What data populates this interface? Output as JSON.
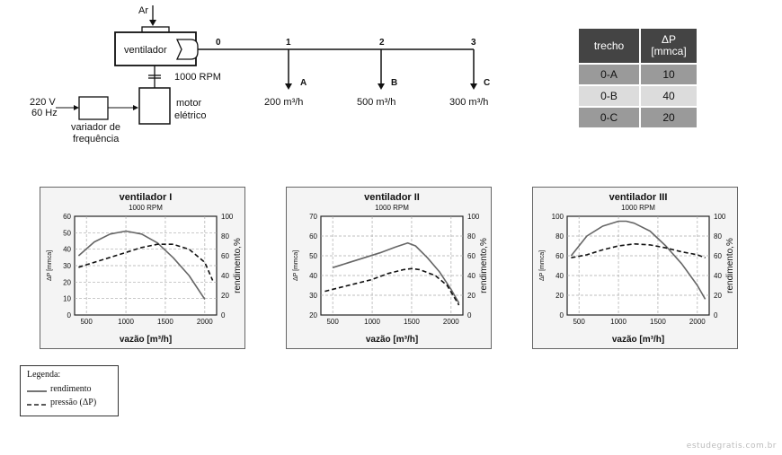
{
  "schematic": {
    "air_label": "Ar",
    "fan_label": "ventilador",
    "rpm_label": "1000 RPM",
    "motor_label_1": "motor",
    "motor_label_2": "elétrico",
    "voltage_label": "220 V",
    "freq_label": "60 Hz",
    "vfd_label_1": "variador de",
    "vfd_label_2": "frequência",
    "nodes": [
      "0",
      "1",
      "2",
      "3"
    ],
    "outlets": [
      {
        "letter": "A",
        "flow": "200 m³/h"
      },
      {
        "letter": "B",
        "flow": "500 m³/h"
      },
      {
        "letter": "C",
        "flow": "300 m³/h"
      }
    ]
  },
  "table": {
    "headers": [
      "trecho",
      "ΔP",
      "[mmca]"
    ],
    "rows": [
      {
        "trecho": "0-A",
        "dp": "10"
      },
      {
        "trecho": "0-B",
        "dp": "40"
      },
      {
        "trecho": "0-C",
        "dp": "20"
      }
    ],
    "row_colors": [
      "#9a9a9a",
      "#dcdcdc",
      "#9a9a9a"
    ]
  },
  "chart_data": [
    {
      "type": "line",
      "title": "ventilador I",
      "subtitle": "1000 RPM",
      "xlabel": "vazão [m³/h]",
      "ylabel_left": "ΔP [mmca]",
      "ylabel_right": "rendimento,%",
      "xlim": [
        350,
        2150
      ],
      "ylim_left": [
        0,
        60
      ],
      "ylim_right": [
        0,
        100
      ],
      "xticks": [
        500,
        1000,
        1500,
        2000
      ],
      "yticks_left": [
        0,
        10,
        20,
        30,
        40,
        50,
        60
      ],
      "yticks_right": [
        0,
        20,
        40,
        60,
        80,
        100
      ],
      "grid": true,
      "series": [
        {
          "name": "rendimento",
          "axis": "right",
          "style": "solid",
          "x": [
            400,
            600,
            800,
            1000,
            1200,
            1400,
            1600,
            1800,
            2000
          ],
          "y": [
            60,
            74,
            82,
            85,
            82,
            73,
            58,
            40,
            16
          ]
        },
        {
          "name": "pressão (ΔP)",
          "axis": "left",
          "style": "dashed",
          "x": [
            400,
            600,
            800,
            1000,
            1200,
            1400,
            1600,
            1800,
            2000,
            2100
          ],
          "y": [
            29,
            32,
            35,
            38,
            41,
            43,
            43,
            40,
            32,
            21
          ]
        }
      ]
    },
    {
      "type": "line",
      "title": "ventilador II",
      "subtitle": "1000 RPM",
      "xlabel": "vazão [m³/h]",
      "ylabel_left": "ΔP [mmca]",
      "ylabel_right": "rendimento,%",
      "xlim": [
        350,
        2150
      ],
      "ylim_left": [
        20,
        70
      ],
      "ylim_right": [
        0,
        100
      ],
      "xticks": [
        500,
        1000,
        1500,
        2000
      ],
      "yticks_left": [
        20,
        30,
        40,
        50,
        60,
        70
      ],
      "yticks_right": [
        0,
        20,
        40,
        60,
        80,
        100
      ],
      "grid": true,
      "series": [
        {
          "name": "rendimento",
          "axis": "right",
          "style": "solid",
          "x": [
            500,
            700,
            900,
            1100,
            1300,
            1450,
            1550,
            1700,
            1850,
            2000,
            2100
          ],
          "y": [
            48,
            53,
            58,
            63,
            69,
            73,
            70,
            58,
            44,
            26,
            12
          ]
        },
        {
          "name": "pressão (ΔP)",
          "axis": "left",
          "style": "dashed",
          "x": [
            400,
            600,
            800,
            1000,
            1200,
            1400,
            1500,
            1600,
            1800,
            1950,
            2100
          ],
          "y": [
            32,
            34,
            36,
            38,
            41,
            43,
            43.5,
            43,
            40,
            35,
            25
          ]
        }
      ]
    },
    {
      "type": "line",
      "title": "ventilador III",
      "subtitle": "1000 RPM",
      "xlabel": "vazão [m³/h]",
      "ylabel_left": "ΔP [mmca]",
      "ylabel_right": "rendimento,%",
      "xlim": [
        350,
        2150
      ],
      "ylim_left": [
        0,
        100
      ],
      "ylim_right": [
        0,
        100
      ],
      "xticks": [
        500,
        1000,
        1500,
        2000
      ],
      "yticks_left": [
        0,
        20,
        40,
        60,
        80,
        100
      ],
      "yticks_right": [
        0,
        20,
        40,
        60,
        80,
        100
      ],
      "grid": true,
      "series": [
        {
          "name": "rendimento",
          "axis": "right",
          "style": "solid",
          "x": [
            400,
            600,
            800,
            1000,
            1100,
            1200,
            1400,
            1600,
            1800,
            2000,
            2100
          ],
          "y": [
            60,
            80,
            90,
            95,
            95,
            93,
            85,
            70,
            52,
            30,
            16
          ]
        },
        {
          "name": "pressão (ΔP)",
          "axis": "left",
          "style": "dashed",
          "x": [
            400,
            600,
            800,
            1000,
            1200,
            1400,
            1600,
            1800,
            2000,
            2100
          ],
          "y": [
            58,
            61,
            66,
            70,
            72,
            71,
            68,
            64,
            61,
            58
          ]
        }
      ]
    }
  ],
  "legend": {
    "title": "Legenda:",
    "items": [
      {
        "label": "rendimento",
        "style": "solid"
      },
      {
        "label": "pressão (ΔP)",
        "style": "dashed"
      }
    ]
  },
  "watermark": "estudegratis.com.br"
}
